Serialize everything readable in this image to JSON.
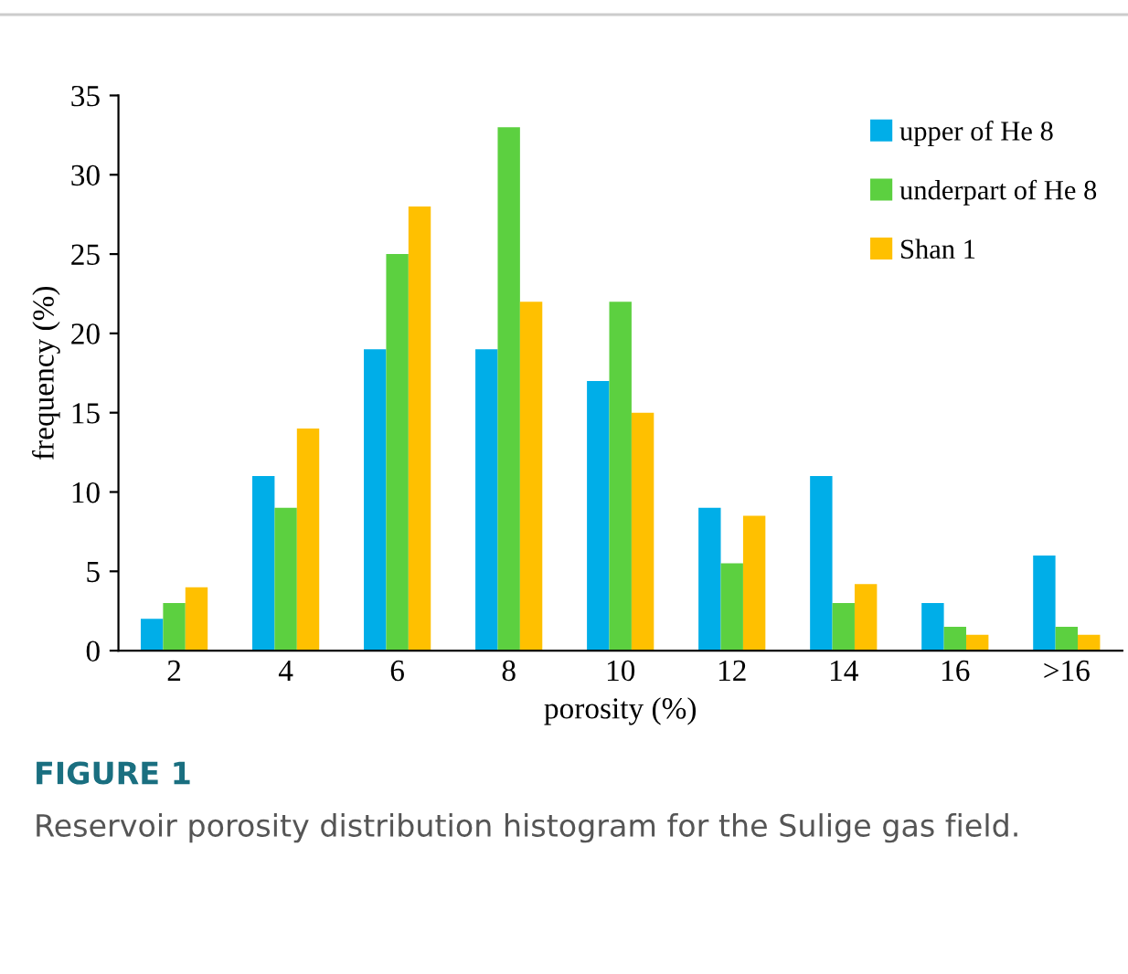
{
  "chart_data": {
    "type": "bar",
    "xlabel": "porosity (%)",
    "ylabel": "frequency (%)",
    "categories": [
      "2",
      "4",
      "6",
      "8",
      "10",
      "12",
      "14",
      "16",
      ">16"
    ],
    "series": [
      {
        "name": "upper of He 8",
        "color": "#00aee8",
        "values": [
          2,
          11,
          19,
          19,
          17,
          9,
          11,
          3,
          6
        ]
      },
      {
        "name": "underpart of He 8",
        "color": "#5cd040",
        "values": [
          3,
          9,
          25,
          33,
          22,
          5.5,
          3,
          1.5,
          1.5
        ]
      },
      {
        "name": "Shan 1",
        "color": "#ffc000",
        "values": [
          4,
          14,
          28,
          22,
          15,
          8.5,
          4.2,
          1,
          1
        ]
      }
    ],
    "ylim": [
      0,
      35
    ],
    "yticks": [
      0,
      5,
      10,
      15,
      20,
      25,
      30,
      35
    ],
    "grid": false,
    "legend": "top right",
    "annotations": [
      "FIGURE 1",
      "Reservoir porosity distribution histogram for the Sulige gas field."
    ]
  }
}
